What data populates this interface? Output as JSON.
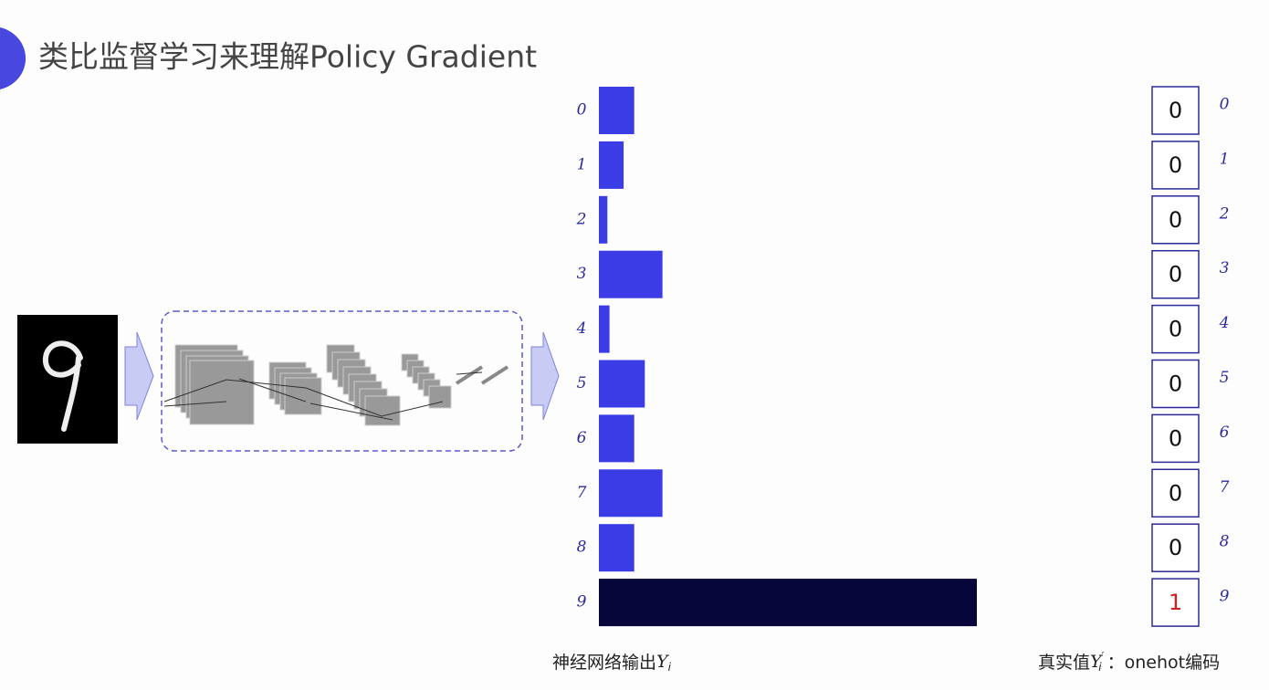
{
  "chart_data": {
    "type": "bar",
    "title": "类比监督学习来理解Policy Gradient",
    "categories": [
      "0",
      "1",
      "2",
      "3",
      "4",
      "5",
      "6",
      "7",
      "8",
      "9"
    ],
    "values": [
      0.05,
      0.035,
      0.012,
      0.09,
      0.015,
      0.065,
      0.05,
      0.09,
      0.05,
      0.535
    ],
    "colors": [
      "#3c3ce6",
      "#3c3ce6",
      "#3c3ce6",
      "#3c3ce6",
      "#3c3ce6",
      "#3c3ce6",
      "#3c3ce6",
      "#3c3ce6",
      "#3c3ce6",
      "#06063a"
    ],
    "onehot": [
      0,
      0,
      0,
      0,
      0,
      0,
      0,
      0,
      0,
      1
    ],
    "output_label": {
      "text": "神经网络输出",
      "symbol": "Y",
      "subscript": "i"
    },
    "target_label": {
      "text": "真实值",
      "symbol": "Y",
      "subscript": "i",
      "prime": "′",
      "suffix": "：onehot编码"
    }
  }
}
